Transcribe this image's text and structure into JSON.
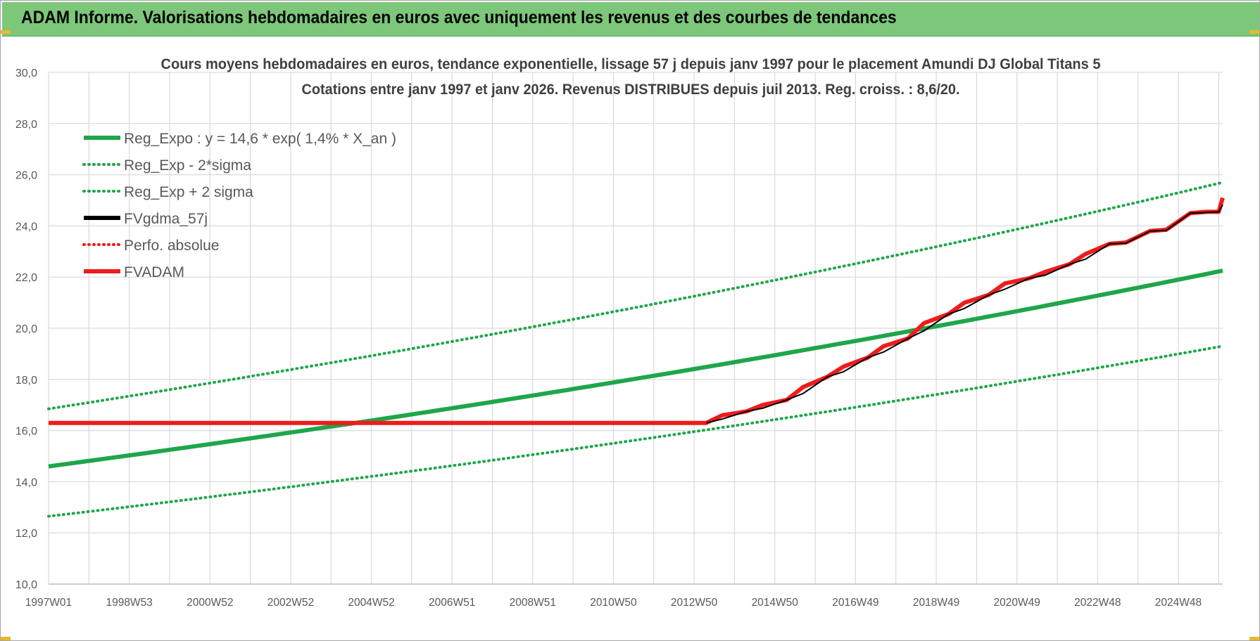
{
  "banner": {
    "title": "ADAM Informe. Valorisations hebdomadaires en euros avec uniquement les revenus et des courbes de tendances"
  },
  "colors": {
    "banner_bg": "#7dc77a",
    "reg_green": "#1fa64a",
    "fvgdma_black": "#000000",
    "fvadam_red": "#ee1c1c",
    "grid": "#d9d9d9"
  },
  "chart_data": {
    "type": "line",
    "title": [
      "Cours moyens hebdomadaires en euros, tendance exponentielle, lissage 57 j depuis janv 1997  pour le placement Amundi DJ Global Titans 5",
      "Cotations entre janv 1997 et janv 2026. Revenus DISTRIBUES depuis juil 2013. Reg. croiss. : 8,6/20."
    ],
    "xlabel": "",
    "ylabel": "",
    "ylim": [
      10,
      30
    ],
    "y_ticks": [
      "10,0",
      "12,0",
      "14,0",
      "16,0",
      "18,0",
      "20,0",
      "22,0",
      "24,0",
      "26,0",
      "28,0",
      "30,0"
    ],
    "x_range_years": [
      1997.0,
      2026.1
    ],
    "x_ticks": [
      {
        "label": "1997W01",
        "year": 1997.0
      },
      {
        "label": "1998W53",
        "year": 1999.0
      },
      {
        "label": "2000W52",
        "year": 2001.0
      },
      {
        "label": "2002W52",
        "year": 2003.0
      },
      {
        "label": "2004W52",
        "year": 2005.0
      },
      {
        "label": "2006W51",
        "year": 2007.0
      },
      {
        "label": "2008W51",
        "year": 2009.0
      },
      {
        "label": "2010W50",
        "year": 2011.0
      },
      {
        "label": "2012W50",
        "year": 2013.0
      },
      {
        "label": "2014W50",
        "year": 2015.0
      },
      {
        "label": "2016W49",
        "year": 2017.0
      },
      {
        "label": "2018W49",
        "year": 2019.0
      },
      {
        "label": "2020W49",
        "year": 2021.0
      },
      {
        "label": "2022W48",
        "year": 2023.0
      },
      {
        "label": "2024W48",
        "year": 2025.0
      }
    ],
    "grid": true,
    "legend_position": "top-left",
    "series": [
      {
        "name": "Reg_Expo : y = 14,6 * exp( 1,4% *  X_an )",
        "style": "solid",
        "color": "#1fa64a",
        "x": [
          1997.0,
          2026.1
        ],
        "y": [
          14.6,
          22.25
        ],
        "model": "exponential"
      },
      {
        "name": "Reg_Exp - 2*sigma",
        "style": "dotted",
        "color": "#1fa64a",
        "x": [
          1997.0,
          2026.1
        ],
        "y": [
          12.65,
          19.3
        ],
        "model": "exponential"
      },
      {
        "name": "Reg_Exp + 2 sigma",
        "style": "dotted",
        "color": "#1fa64a",
        "x": [
          1997.0,
          2026.1
        ],
        "y": [
          16.85,
          25.7
        ],
        "model": "exponential"
      },
      {
        "name": "FVgdma_57j",
        "style": "solid",
        "color": "#000000",
        "follows": "FVADAM"
      },
      {
        "name": "Perfo. absolue",
        "style": "dotted",
        "color": "#ee1c1c",
        "points": []
      },
      {
        "name": "FVADAM",
        "style": "solid",
        "color": "#ee1c1c",
        "x": [
          1997.0,
          2013.3,
          2013.7,
          2014.3,
          2014.7,
          2015.3,
          2015.7,
          2016.3,
          2016.7,
          2017.3,
          2017.7,
          2018.3,
          2018.7,
          2019.3,
          2019.7,
          2020.3,
          2020.7,
          2021.3,
          2021.7,
          2022.3,
          2022.7,
          2023.3,
          2023.7,
          2024.3,
          2024.7,
          2025.3,
          2025.7,
          2026.0,
          2026.1
        ],
        "y": [
          16.3,
          16.3,
          16.6,
          16.75,
          17.0,
          17.2,
          17.7,
          18.1,
          18.5,
          18.85,
          19.3,
          19.6,
          20.2,
          20.55,
          21.0,
          21.3,
          21.75,
          21.95,
          22.2,
          22.5,
          22.9,
          23.3,
          23.35,
          23.8,
          23.85,
          24.5,
          24.55,
          24.55,
          25.1
        ]
      }
    ]
  }
}
